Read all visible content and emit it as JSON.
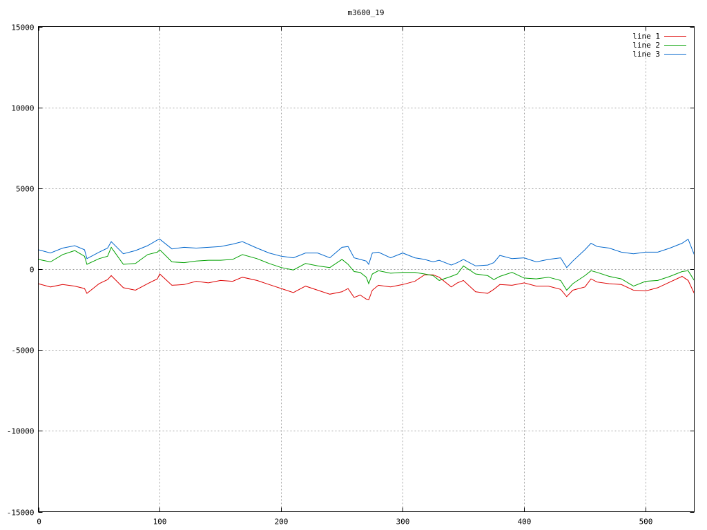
{
  "chart_data": {
    "type": "line",
    "title": "m3600_19",
    "xlabel": "",
    "ylabel": "",
    "xlim": [
      0,
      540
    ],
    "ylim": [
      -15000,
      15000
    ],
    "x_ticks": [
      0,
      100,
      200,
      300,
      400,
      500
    ],
    "y_ticks": [
      -15000,
      -10000,
      -5000,
      0,
      5000,
      10000,
      15000
    ],
    "x_tick_labels": [
      "0",
      "100",
      "200",
      "300",
      "400",
      "500"
    ],
    "y_tick_labels": [
      "-15000",
      "-10000",
      "-5000",
      "0",
      "5000",
      "10000",
      "15000"
    ],
    "grid": true,
    "legend_position": "top-right",
    "x": [
      0,
      10,
      20,
      30,
      38,
      40,
      50,
      57,
      60,
      70,
      80,
      90,
      98,
      100,
      110,
      120,
      130,
      140,
      150,
      160,
      168,
      180,
      190,
      200,
      210,
      220,
      230,
      240,
      250,
      255,
      260,
      265,
      270,
      272,
      275,
      280,
      290,
      300,
      310,
      318,
      325,
      330,
      340,
      345,
      350,
      360,
      370,
      375,
      380,
      390,
      400,
      410,
      420,
      430,
      435,
      440,
      450,
      455,
      460,
      470,
      480,
      490,
      500,
      510,
      520,
      530,
      535,
      540
    ],
    "series": [
      {
        "name": "line 1",
        "color": "#dd0000",
        "values": [
          -900,
          -1100,
          -950,
          -1050,
          -1200,
          -1500,
          -900,
          -650,
          -400,
          -1150,
          -1300,
          -900,
          -600,
          -300,
          -1000,
          -950,
          -750,
          -850,
          -700,
          -750,
          -500,
          -700,
          -950,
          -1200,
          -1450,
          -1050,
          -1300,
          -1550,
          -1400,
          -1200,
          -1750,
          -1600,
          -1850,
          -1900,
          -1300,
          -1000,
          -1100,
          -950,
          -750,
          -350,
          -350,
          -500,
          -1100,
          -850,
          -700,
          -1400,
          -1500,
          -1250,
          -950,
          -1000,
          -850,
          -1050,
          -1050,
          -1250,
          -1700,
          -1300,
          -1100,
          -600,
          -800,
          -900,
          -950,
          -1300,
          -1350,
          -1150,
          -800,
          -450,
          -700,
          -1500
        ]
      },
      {
        "name": "line 2",
        "color": "#00a000",
        "values": [
          600,
          450,
          900,
          1150,
          800,
          300,
          650,
          800,
          1350,
          300,
          350,
          900,
          1050,
          1200,
          450,
          400,
          500,
          550,
          550,
          600,
          900,
          650,
          350,
          100,
          -50,
          350,
          200,
          100,
          600,
          300,
          -150,
          -200,
          -500,
          -900,
          -300,
          -100,
          -250,
          -200,
          -200,
          -300,
          -400,
          -700,
          -450,
          -300,
          200,
          -300,
          -400,
          -650,
          -450,
          -200,
          -550,
          -600,
          -500,
          -700,
          -1300,
          -900,
          -400,
          -100,
          -200,
          -450,
          -600,
          -1050,
          -750,
          -700,
          -450,
          -150,
          -100,
          -700
        ]
      },
      {
        "name": "line 3",
        "color": "#0066cc",
        "values": [
          1200,
          1000,
          1300,
          1450,
          1200,
          650,
          1050,
          1300,
          1700,
          950,
          1150,
          1450,
          1800,
          1850,
          1250,
          1350,
          1300,
          1350,
          1400,
          1550,
          1700,
          1300,
          1000,
          800,
          700,
          1000,
          1000,
          700,
          1350,
          1400,
          700,
          600,
          500,
          300,
          1000,
          1050,
          700,
          1000,
          700,
          600,
          450,
          550,
          250,
          400,
          600,
          200,
          250,
          400,
          850,
          650,
          700,
          450,
          600,
          700,
          100,
          500,
          1200,
          1600,
          1400,
          1300,
          1050,
          950,
          1050,
          1050,
          1300,
          1600,
          1850,
          900
        ]
      }
    ]
  }
}
